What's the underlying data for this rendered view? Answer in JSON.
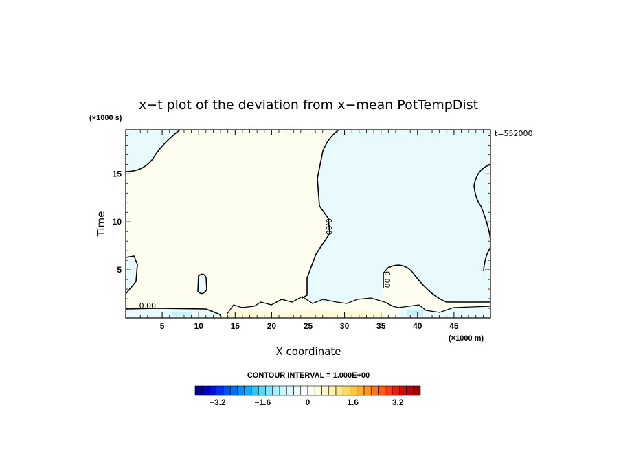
{
  "chart_data": {
    "type": "heatmap",
    "title": "x−t plot of the deviation from x−mean PotTempDist",
    "xlabel": "X coordinate",
    "ylabel": "Time",
    "x_unit": "(×1000 m)",
    "y_unit": "(×1000 s)",
    "time_stamp": "t=552000",
    "xlim": [
      0,
      50
    ],
    "ylim": [
      0,
      19.6
    ],
    "x_ticks": [
      5,
      10,
      15,
      20,
      25,
      30,
      35,
      40,
      45
    ],
    "y_ticks": [
      5,
      10,
      15
    ],
    "contour_labels": [
      {
        "text": "0.00",
        "x": 3,
        "y": 1.0
      },
      {
        "text": "0.00",
        "x": 27.5,
        "y": 9.5
      },
      {
        "text": "0.00",
        "x": 35.5,
        "y": 4.0
      }
    ],
    "colorbar": {
      "label": "CONTOUR INTERVAL = 1.000E+00",
      "ticks": [
        "−3.2",
        "−1.6",
        "0",
        "1.6",
        "3.2"
      ],
      "tick_values": [
        -3.2,
        -1.6,
        0,
        1.6,
        3.2
      ],
      "range": [
        -4.0,
        4.0
      ],
      "colors": [
        "#00008f",
        "#0000b8",
        "#0010e0",
        "#0030f0",
        "#0050f5",
        "#0070f8",
        "#0090fa",
        "#10acfc",
        "#30c4fd",
        "#55d8fd",
        "#80e6fd",
        "#a8f0fd",
        "#c8f6fc",
        "#def9fb",
        "#eefcfb",
        "#f8fefb",
        "#fefff0",
        "#fffde0",
        "#fffac8",
        "#fff3a8",
        "#ffe888",
        "#ffd868",
        "#ffc448",
        "#ffae30",
        "#ff9420",
        "#ff7818",
        "#ff5a10",
        "#f53c0c",
        "#e52008",
        "#d00c06",
        "#b80404",
        "#9a0000"
      ]
    },
    "colors": {
      "positive_fill": "#fefef0",
      "negative_fill": "#e8fafb",
      "contour": "#000000"
    }
  }
}
